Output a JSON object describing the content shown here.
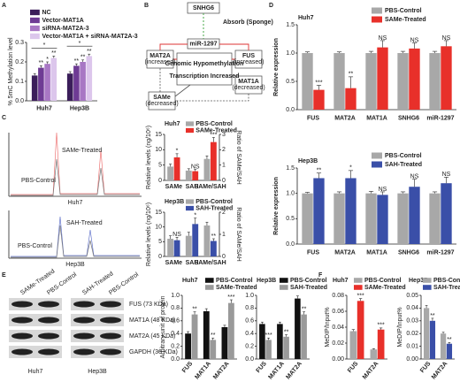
{
  "panels": [
    "A",
    "B",
    "C",
    "D",
    "E",
    "F"
  ],
  "chart_data": [
    {
      "type": "bar",
      "ylabel": "% 5mC Methylation level",
      "categories": [
        "Huh7",
        "Hep3B"
      ],
      "series": [
        {
          "name": "NC",
          "color": "#3b1e5a",
          "values": [
            0.13,
            0.14
          ],
          "errors": [
            0.01,
            0.01
          ]
        },
        {
          "name": "Vector-MAT1A",
          "color": "#6e3b94",
          "values": [
            0.17,
            0.18
          ],
          "errors": [
            0.01,
            0.01
          ],
          "sig": [
            "**",
            "**"
          ]
        },
        {
          "name": "siRNA-MAT2A-3",
          "color": "#a877c4",
          "values": [
            0.19,
            0.2
          ],
          "errors": [
            0.01,
            0.01
          ],
          "sig": [
            "*",
            "**"
          ]
        },
        {
          "name": "Vector-MAT1A + siRNA-MAT2A-3",
          "color": "#dcc6ec",
          "values": [
            0.22,
            0.23
          ],
          "errors": [
            0.01,
            0.01
          ],
          "sig": [
            "**",
            "**"
          ]
        }
      ],
      "bracket_labels": [
        "*",
        "*"
      ],
      "ylim": [
        0,
        0.3
      ],
      "yticks": [
        {
          "value": 0,
          "label": "0.0"
        },
        {
          "value": 0.1,
          "label": "0.1"
        },
        {
          "value": 0.2,
          "label": "0.2"
        },
        {
          "value": 0.3,
          "label": "0.3"
        }
      ]
    },
    {
      "type": "bar",
      "title": "Huh7",
      "title_color": "#b07a1e",
      "ylabel": "Relative levels (ng/10⁶)",
      "y2label": "Ratio of SAMe/SAH",
      "categories": [
        "SAMe",
        "SAH",
        "SAMe/SAH"
      ],
      "category_axis": [
        "y",
        "y",
        "y2"
      ],
      "series": [
        {
          "name": "PBS-Control",
          "color": "#a8a8a8",
          "values": [
            4.5,
            3.2,
            1.4
          ],
          "errors": [
            0.8,
            0.6,
            0.2
          ]
        },
        {
          "name": "SAMe-Treated",
          "color": "#e8302a",
          "values": [
            7.5,
            3,
            2.5
          ],
          "errors": [
            1.2,
            0.6,
            0.3
          ],
          "sig": [
            "*",
            "NS",
            "***"
          ]
        }
      ],
      "ylim": [
        0,
        15
      ],
      "yticks": [
        0,
        5,
        10,
        15
      ],
      "y2lim": [
        0,
        3
      ],
      "y2ticks": [
        0,
        1,
        2,
        3
      ]
    },
    {
      "type": "bar",
      "title": "Hep3B",
      "title_color": "#b07a1e",
      "ylabel": "Relative levels (ng/10⁶)",
      "y2label": "Ratio of SAMe/SAH",
      "categories": [
        "SAMe",
        "SAH",
        "SAMe/SAH"
      ],
      "category_axis": [
        "y",
        "y",
        "y2"
      ],
      "series": [
        {
          "name": "PBS-Control",
          "color": "#a8a8a8",
          "values": [
            6,
            7,
            1.4
          ],
          "errors": [
            1,
            1.2,
            0.15
          ]
        },
        {
          "name": "SAH-Treated",
          "color": "#3a4fa8",
          "values": [
            5.5,
            11,
            0.7
          ],
          "errors": [
            1,
            2,
            0.1
          ],
          "sig": [
            "NS",
            "*",
            "**"
          ]
        }
      ],
      "ylim": [
        0,
        15
      ],
      "yticks": [
        0,
        5,
        10,
        15
      ],
      "y2lim": [
        0,
        2
      ],
      "y2ticks": [
        0,
        1,
        2
      ]
    },
    {
      "type": "bar",
      "title": "Huh7",
      "title_color": "#b07a1e",
      "ylabel": "Relative expression",
      "categories": [
        "FUS",
        "MAT2A",
        "MAT1A",
        "SNHG6",
        "miR-1297"
      ],
      "series": [
        {
          "name": "PBS-Control",
          "color": "#a8a8a8",
          "values": [
            1,
            1,
            1,
            1,
            1
          ],
          "errors": [
            0.02,
            0.02,
            0.03,
            0.03,
            0.03
          ]
        },
        {
          "name": "SAMe-Treated",
          "color": "#e8302a",
          "values": [
            0.35,
            0.38,
            1.1,
            1.08,
            1.12
          ],
          "errors": [
            0.08,
            0.2,
            0.12,
            0.1,
            0.1
          ],
          "sig": [
            "***",
            "**",
            "NS",
            "NS",
            "NS"
          ]
        }
      ],
      "ylim": [
        0,
        1.5
      ],
      "yticks": [
        {
          "value": 0,
          "label": "0.0"
        },
        {
          "value": 0.5,
          "label": "0.5"
        },
        {
          "value": 1,
          "label": "1.0"
        },
        {
          "value": 1.5,
          "label": "1.5"
        }
      ]
    },
    {
      "type": "bar",
      "title": "Hep3B",
      "title_color": "#b07a1e",
      "ylabel": "Relative expression",
      "categories": [
        "FUS",
        "MAT2A",
        "MAT1A",
        "SNHG6",
        "miR-1297"
      ],
      "series": [
        {
          "name": "PBS-Control",
          "color": "#a8a8a8",
          "values": [
            1,
            1,
            1,
            1,
            1
          ],
          "errors": [
            0.02,
            0.03,
            0.04,
            0.03,
            0.03
          ]
        },
        {
          "name": "SAH-Treated",
          "color": "#3a4fa8",
          "values": [
            1.3,
            1.3,
            0.97,
            1.13,
            1.2
          ],
          "errors": [
            0.1,
            0.15,
            0.06,
            0.15,
            0.12
          ],
          "sig": [
            "**",
            "*",
            "NS",
            "NS",
            "NS"
          ]
        }
      ],
      "ylim": [
        0,
        1.5
      ],
      "yticks": [
        {
          "value": 0,
          "label": "0.0"
        },
        {
          "value": 0.5,
          "label": "0.5"
        },
        {
          "value": 1,
          "label": "1.0"
        },
        {
          "value": 1.5,
          "label": "1.5"
        }
      ]
    },
    {
      "type": "bar",
      "title": "Huh7",
      "title_color": "#b07a1e",
      "ylabel": "Arbitrary unit of protein",
      "categories": [
        "FUS",
        "MAT1A",
        "MAT2A"
      ],
      "series": [
        {
          "name": "PBS-Control",
          "color": "#111111",
          "values": [
            0.4,
            0.75,
            0.5
          ],
          "errors": [
            0.03,
            0.04,
            0.03
          ]
        },
        {
          "name": "SAMe-Treated",
          "color": "#9a9a9a",
          "values": [
            0.7,
            0.3,
            0.88
          ],
          "errors": [
            0.04,
            0.03,
            0.05
          ],
          "sig": [
            "**",
            "**",
            "***"
          ]
        }
      ],
      "ylim": [
        0,
        1
      ],
      "yticks": [
        {
          "value": 0,
          "label": "0.0"
        },
        {
          "value": 0.2,
          "label": "0.2"
        },
        {
          "value": 0.4,
          "label": "0.4"
        },
        {
          "value": 0.6,
          "label": "0.6"
        },
        {
          "value": 0.8,
          "label": "0.8"
        },
        {
          "value": 1,
          "label": "1.0"
        }
      ]
    },
    {
      "type": "bar",
      "title": "Hep3B",
      "title_color": "#b07a1e",
      "categories": [
        "FUS",
        "MAT1A",
        "MAT2A"
      ],
      "series": [
        {
          "name": "PBS-Control",
          "color": "#111111",
          "values": [
            0.55,
            0.55,
            0.95
          ],
          "errors": [
            0.03,
            0.03,
            0.04
          ]
        },
        {
          "name": "SAH-Treated",
          "color": "#9a9a9a",
          "values": [
            0.3,
            0.35,
            0.7
          ],
          "errors": [
            0.03,
            0.03,
            0.04
          ],
          "sig": [
            "***",
            "**",
            "**"
          ]
        }
      ],
      "ylim": [
        0,
        1
      ],
      "yticks": [
        {
          "value": 0,
          "label": "0.0"
        },
        {
          "value": 0.2,
          "label": "0.2"
        },
        {
          "value": 0.4,
          "label": "0.4"
        },
        {
          "value": 0.6,
          "label": "0.6"
        },
        {
          "value": 0.8,
          "label": "0.8"
        },
        {
          "value": 1,
          "label": "1.0"
        }
      ]
    },
    {
      "type": "bar",
      "title": "Huh7",
      "title_color": "#b07a1e",
      "ylabel": "MeDIP/Input%",
      "categories": [
        "FUS",
        "MAT2A"
      ],
      "series": [
        {
          "name": "PBS-Control",
          "color": "#a8a8a8",
          "values": [
            0.035,
            0.012
          ],
          "errors": [
            0.002,
            0.001
          ]
        },
        {
          "name": "SAMe-Treated",
          "color": "#e8302a",
          "values": [
            0.073,
            0.037
          ],
          "errors": [
            0.003,
            0.002
          ],
          "sig": [
            "***",
            "***"
          ]
        }
      ],
      "ylim": [
        0,
        0.08
      ],
      "yticks": [
        {
          "value": 0,
          "label": "0.00"
        },
        {
          "value": 0.02,
          "label": "0.02"
        },
        {
          "value": 0.04,
          "label": "0.04"
        },
        {
          "value": 0.06,
          "label": "0.06"
        },
        {
          "value": 0.08,
          "label": "0.08"
        }
      ]
    },
    {
      "type": "bar",
      "title": "Hep3B",
      "title_color": "#b07a1e",
      "ylabel": "MeDIP/Input%",
      "categories": [
        "FUS",
        "MAT2A"
      ],
      "series": [
        {
          "name": "PBS-Control",
          "color": "#a8a8a8",
          "values": [
            0.04,
            0.02
          ],
          "errors": [
            0.002,
            0.001
          ]
        },
        {
          "name": "SAH-Treated",
          "color": "#3a4fa8",
          "values": [
            0.03,
            0.012
          ],
          "errors": [
            0.002,
            0.001
          ],
          "sig": [
            "**",
            "**"
          ]
        }
      ],
      "ylim": [
        0,
        0.05
      ],
      "yticks": [
        {
          "value": 0,
          "label": "0.00"
        },
        {
          "value": 0.01,
          "label": "0.01"
        },
        {
          "value": 0.02,
          "label": "0.02"
        },
        {
          "value": 0.03,
          "label": "0.03"
        },
        {
          "value": 0.04,
          "label": "0.04"
        },
        {
          "value": 0.05,
          "label": "0.05"
        }
      ]
    }
  ],
  "diagram": {
    "nodes": [
      {
        "label": "SNHG6"
      },
      {
        "label": "miR-1297"
      },
      {
        "label": "MAT2A",
        "note": "(increased)"
      },
      {
        "label": "FUS",
        "note": "(increased)"
      },
      {
        "label": "Genomic Hypomethylation"
      },
      {
        "label": "Transcription Increased"
      },
      {
        "label": "MAT1A",
        "note": "(decreased)"
      },
      {
        "label": "SAMe",
        "note": "(decreased)"
      }
    ],
    "edge_label": "Absorb (Sponge)"
  },
  "chromatograms": [
    {
      "labels": [
        "PBS-Control",
        "SAMe-Treated"
      ],
      "cell": "Huh7"
    },
    {
      "labels": [
        "PBS-Control",
        "SAH-Treated"
      ],
      "cell": "Hep3B"
    }
  ],
  "blot": {
    "lanes": [
      "SAMe-Treated",
      "PBS-Control",
      "SAH-Treated",
      "PBS-Control"
    ],
    "proteins": [
      "FUS (73 KDa)",
      "MAT1A (48 KDa)",
      "MAT2A (45 KDa)",
      "GAPDH (36 KDa)"
    ],
    "cells": [
      "Huh7",
      "Hep3B"
    ]
  }
}
